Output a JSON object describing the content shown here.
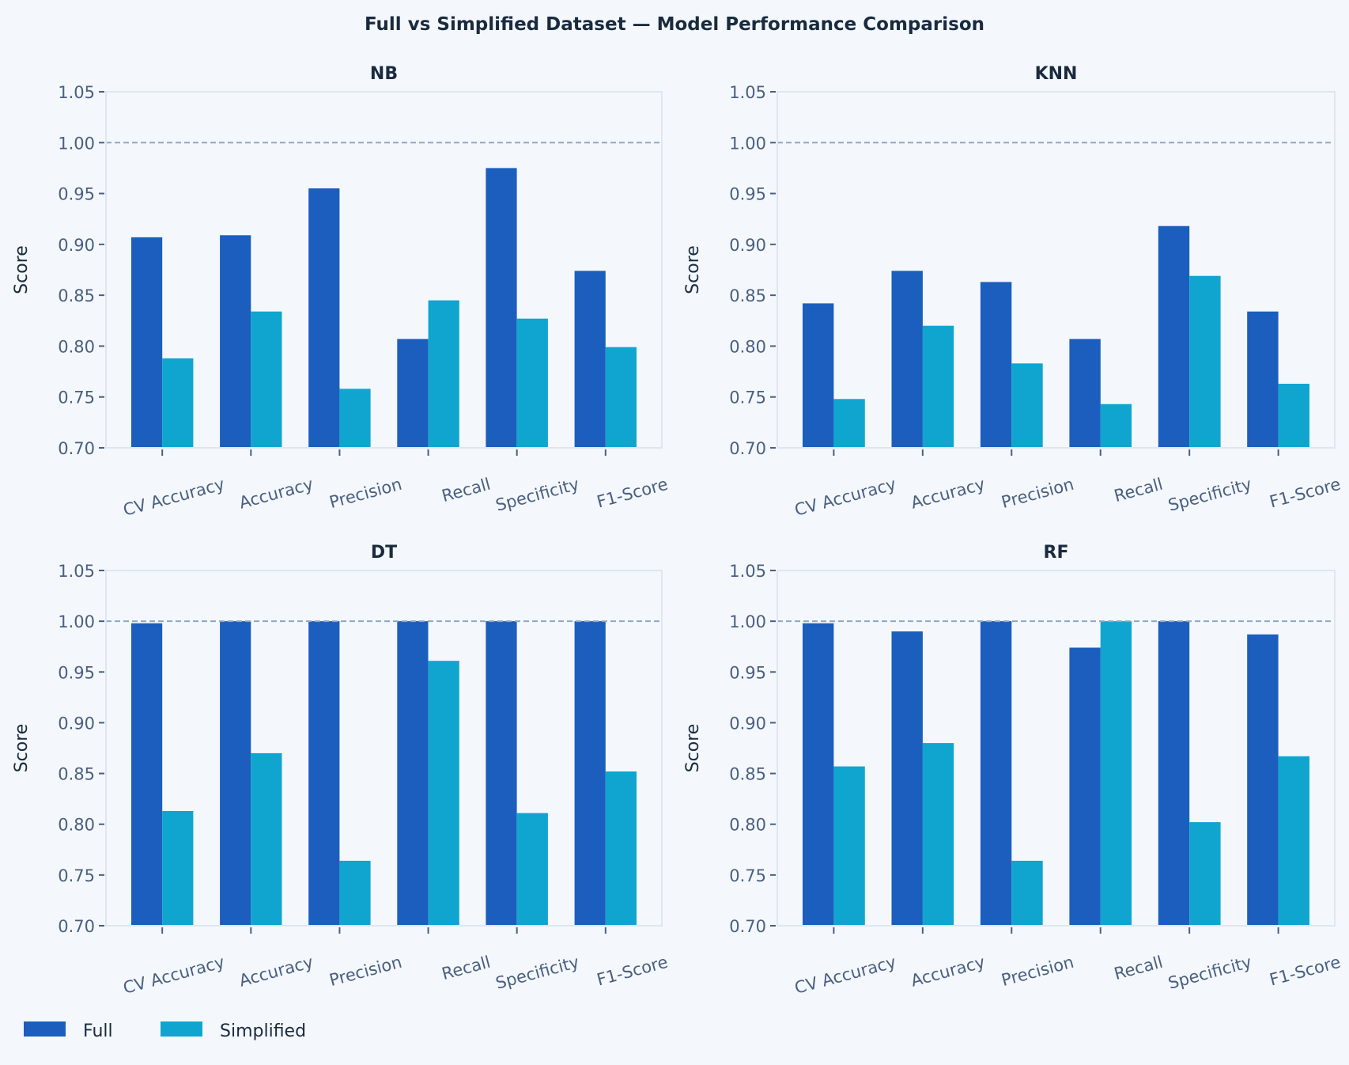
{
  "chart_data": {
    "type": "bar",
    "title": "Full vs Simplified Dataset — Model Performance Comparison",
    "categories": [
      "CV Accuracy",
      "Accuracy",
      "Precision",
      "Recall",
      "Specificity",
      "F1-Score"
    ],
    "ylabel": "Score",
    "xlabel": "",
    "ylim": [
      0.7,
      1.05
    ],
    "yticks": [
      "0.70",
      "0.75",
      "0.80",
      "0.85",
      "0.90",
      "0.95",
      "1.00",
      "1.05"
    ],
    "reference_line": 1.0,
    "xtick_rotation_deg": 15,
    "grid": false,
    "legend": {
      "placement": "bottom-left",
      "entries": [
        {
          "name": "Full",
          "color": "#1b5ebe"
        },
        {
          "name": "Simplified",
          "color": "#10a5cf"
        }
      ]
    },
    "panels": [
      {
        "title": "NB",
        "series": [
          {
            "name": "Full",
            "values": [
              0.907,
              0.909,
              0.955,
              0.807,
              0.975,
              0.874
            ]
          },
          {
            "name": "Simplified",
            "values": [
              0.788,
              0.834,
              0.758,
              0.845,
              0.827,
              0.799
            ]
          }
        ]
      },
      {
        "title": "KNN",
        "series": [
          {
            "name": "Full",
            "values": [
              0.842,
              0.874,
              0.863,
              0.807,
              0.918,
              0.834
            ]
          },
          {
            "name": "Simplified",
            "values": [
              0.748,
              0.82,
              0.783,
              0.743,
              0.869,
              0.763
            ]
          }
        ]
      },
      {
        "title": "DT",
        "series": [
          {
            "name": "Full",
            "values": [
              0.998,
              1.0,
              1.0,
              1.0,
              1.0,
              1.0
            ]
          },
          {
            "name": "Simplified",
            "values": [
              0.813,
              0.87,
              0.764,
              0.961,
              0.811,
              0.852
            ]
          }
        ]
      },
      {
        "title": "RF",
        "series": [
          {
            "name": "Full",
            "values": [
              0.998,
              0.99,
              1.0,
              0.974,
              1.0,
              0.987
            ]
          },
          {
            "name": "Simplified",
            "values": [
              0.857,
              0.88,
              0.764,
              1.0,
              0.802,
              0.867
            ]
          }
        ]
      }
    ]
  }
}
